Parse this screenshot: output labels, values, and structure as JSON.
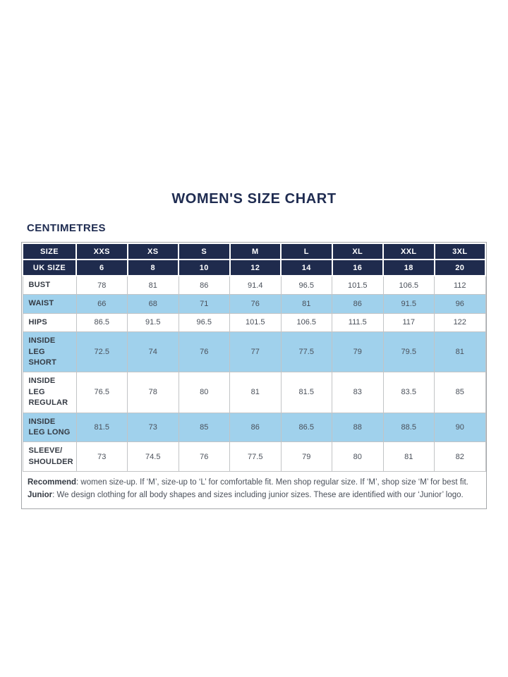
{
  "title": "WOMEN'S SIZE CHART",
  "unit_label": "CENTIMETRES",
  "colors": {
    "navy": "#1F2B4D",
    "light_blue": "#A0D1EC",
    "heading_text": "#1F2C51",
    "body_text": "#4A505A",
    "label_text": "#343A43",
    "border": "#C2C4C6",
    "outer_border": "#A5A8AB"
  },
  "chart_data": {
    "type": "table",
    "title": "WOMEN'S SIZE CHART",
    "units": "CENTIMETRES",
    "header_rows": [
      {
        "label": "SIZE",
        "values": [
          "XXS",
          "XS",
          "S",
          "M",
          "L",
          "XL",
          "XXL",
          "3XL"
        ]
      },
      {
        "label": "UK SIZE",
        "values": [
          "6",
          "8",
          "10",
          "12",
          "14",
          "16",
          "18",
          "20"
        ]
      }
    ],
    "rows": [
      {
        "label": "BUST",
        "shaded": false,
        "values": [
          "78",
          "81",
          "86",
          "91.4",
          "96.5",
          "101.5",
          "106.5",
          "112"
        ]
      },
      {
        "label": "WAIST",
        "shaded": true,
        "values": [
          "66",
          "68",
          "71",
          "76",
          "81",
          "86",
          "91.5",
          "96"
        ]
      },
      {
        "label": "HIPS",
        "shaded": false,
        "values": [
          "86.5",
          "91.5",
          "96.5",
          "101.5",
          "106.5",
          "111.5",
          "117",
          "122"
        ]
      },
      {
        "label": "INSIDE LEG SHORT",
        "shaded": true,
        "values": [
          "72.5",
          "74",
          "76",
          "77",
          "77.5",
          "79",
          "79.5",
          "81"
        ]
      },
      {
        "label": "INSIDE LEG REGULAR",
        "shaded": false,
        "values": [
          "76.5",
          "78",
          "80",
          "81",
          "81.5",
          "83",
          "83.5",
          "85"
        ]
      },
      {
        "label": "INSIDE LEG LONG",
        "shaded": true,
        "values": [
          "81.5",
          "73",
          "85",
          "86",
          "86.5",
          "88",
          "88.5",
          "90"
        ]
      },
      {
        "label": "SLEEVE/SHOULDER",
        "shaded": false,
        "values": [
          "73",
          "74.5",
          "76",
          "77.5",
          "79",
          "80",
          "81",
          "82"
        ]
      }
    ],
    "footnotes": [
      {
        "label": "Recommend",
        "text": ": women size-up. If ‘M’, size-up to ‘L’ for comfortable fit. Men shop regular size. If ‘M’, shop size ‘M’ for best fit."
      },
      {
        "label": "Junior",
        "text": ": We design clothing for all body shapes and sizes including junior sizes. These are identified with our ‘Junior’ logo."
      }
    ]
  }
}
